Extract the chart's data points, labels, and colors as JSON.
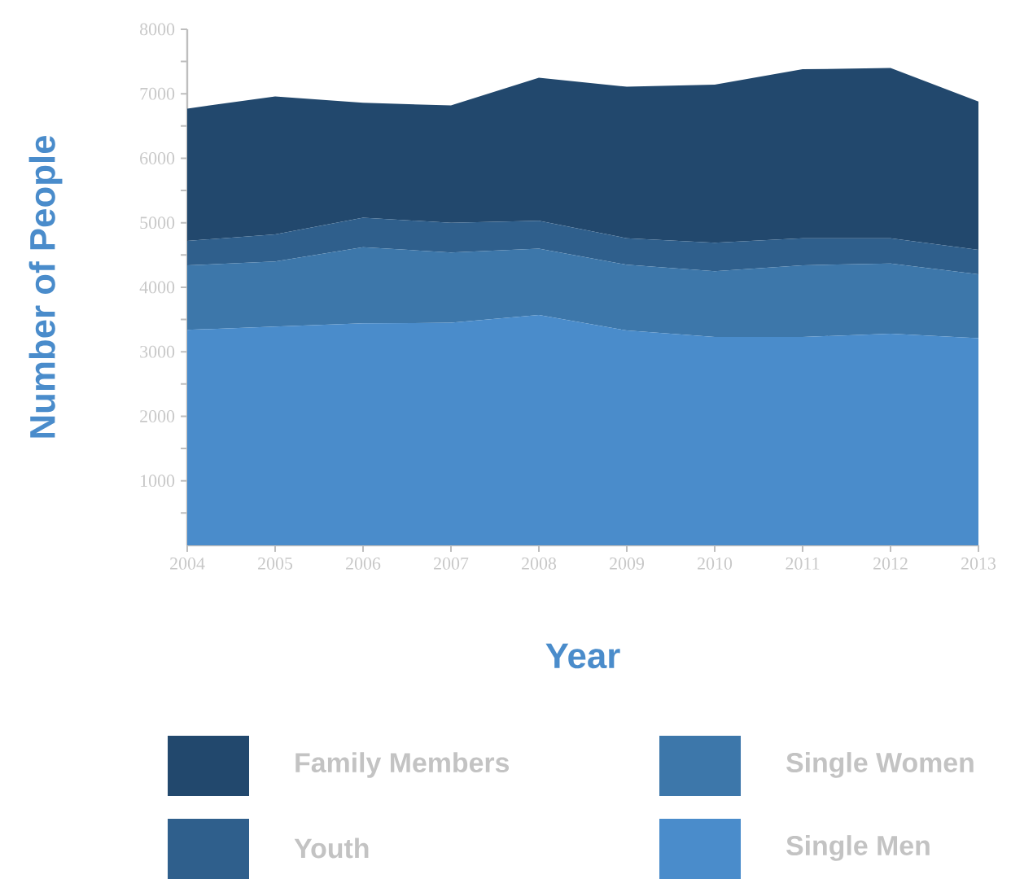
{
  "chart_data": {
    "type": "area",
    "stacked": true,
    "xlabel": "Year",
    "ylabel": "Number of People",
    "legend": "bottom",
    "x": [
      2004,
      2005,
      2006,
      2007,
      2008,
      2009,
      2010,
      2011,
      2012,
      2013
    ],
    "xlim": [
      2004,
      2013
    ],
    "xticks": [
      2004,
      2005,
      2006,
      2007,
      2008,
      2009,
      2010,
      2011,
      2012,
      2013
    ],
    "ylim": [
      0,
      8000
    ],
    "yticks": [
      {
        "value": 500,
        "label": null
      },
      1000,
      {
        "value": 1500,
        "label": null
      },
      2000,
      {
        "value": 2500,
        "label": null
      },
      3000,
      {
        "value": 3500,
        "label": null
      },
      4000,
      {
        "value": 4500,
        "label": null
      },
      5000,
      {
        "value": 5500,
        "label": null
      },
      6000,
      {
        "value": 6500,
        "label": null
      },
      7000,
      {
        "value": 7500,
        "label": null
      },
      8000
    ],
    "series": [
      {
        "name": "Single Men",
        "color": "#4a8ccb",
        "values": [
          3340,
          3390,
          3440,
          3450,
          3570,
          3330,
          3230,
          3230,
          3280,
          3210
        ]
      },
      {
        "name": "Single Women",
        "color": "#3d77aa",
        "values": [
          1000,
          1010,
          1180,
          1090,
          1030,
          1020,
          1020,
          1110,
          1090,
          990
        ]
      },
      {
        "name": "Youth",
        "color": "#2f5f8c",
        "values": [
          380,
          420,
          460,
          460,
          430,
          410,
          440,
          420,
          390,
          380
        ]
      },
      {
        "name": "Family Members",
        "color": "#22486d",
        "values": [
          2050,
          2140,
          1780,
          1820,
          2220,
          2350,
          2450,
          2620,
          2640,
          2300
        ]
      }
    ]
  }
}
